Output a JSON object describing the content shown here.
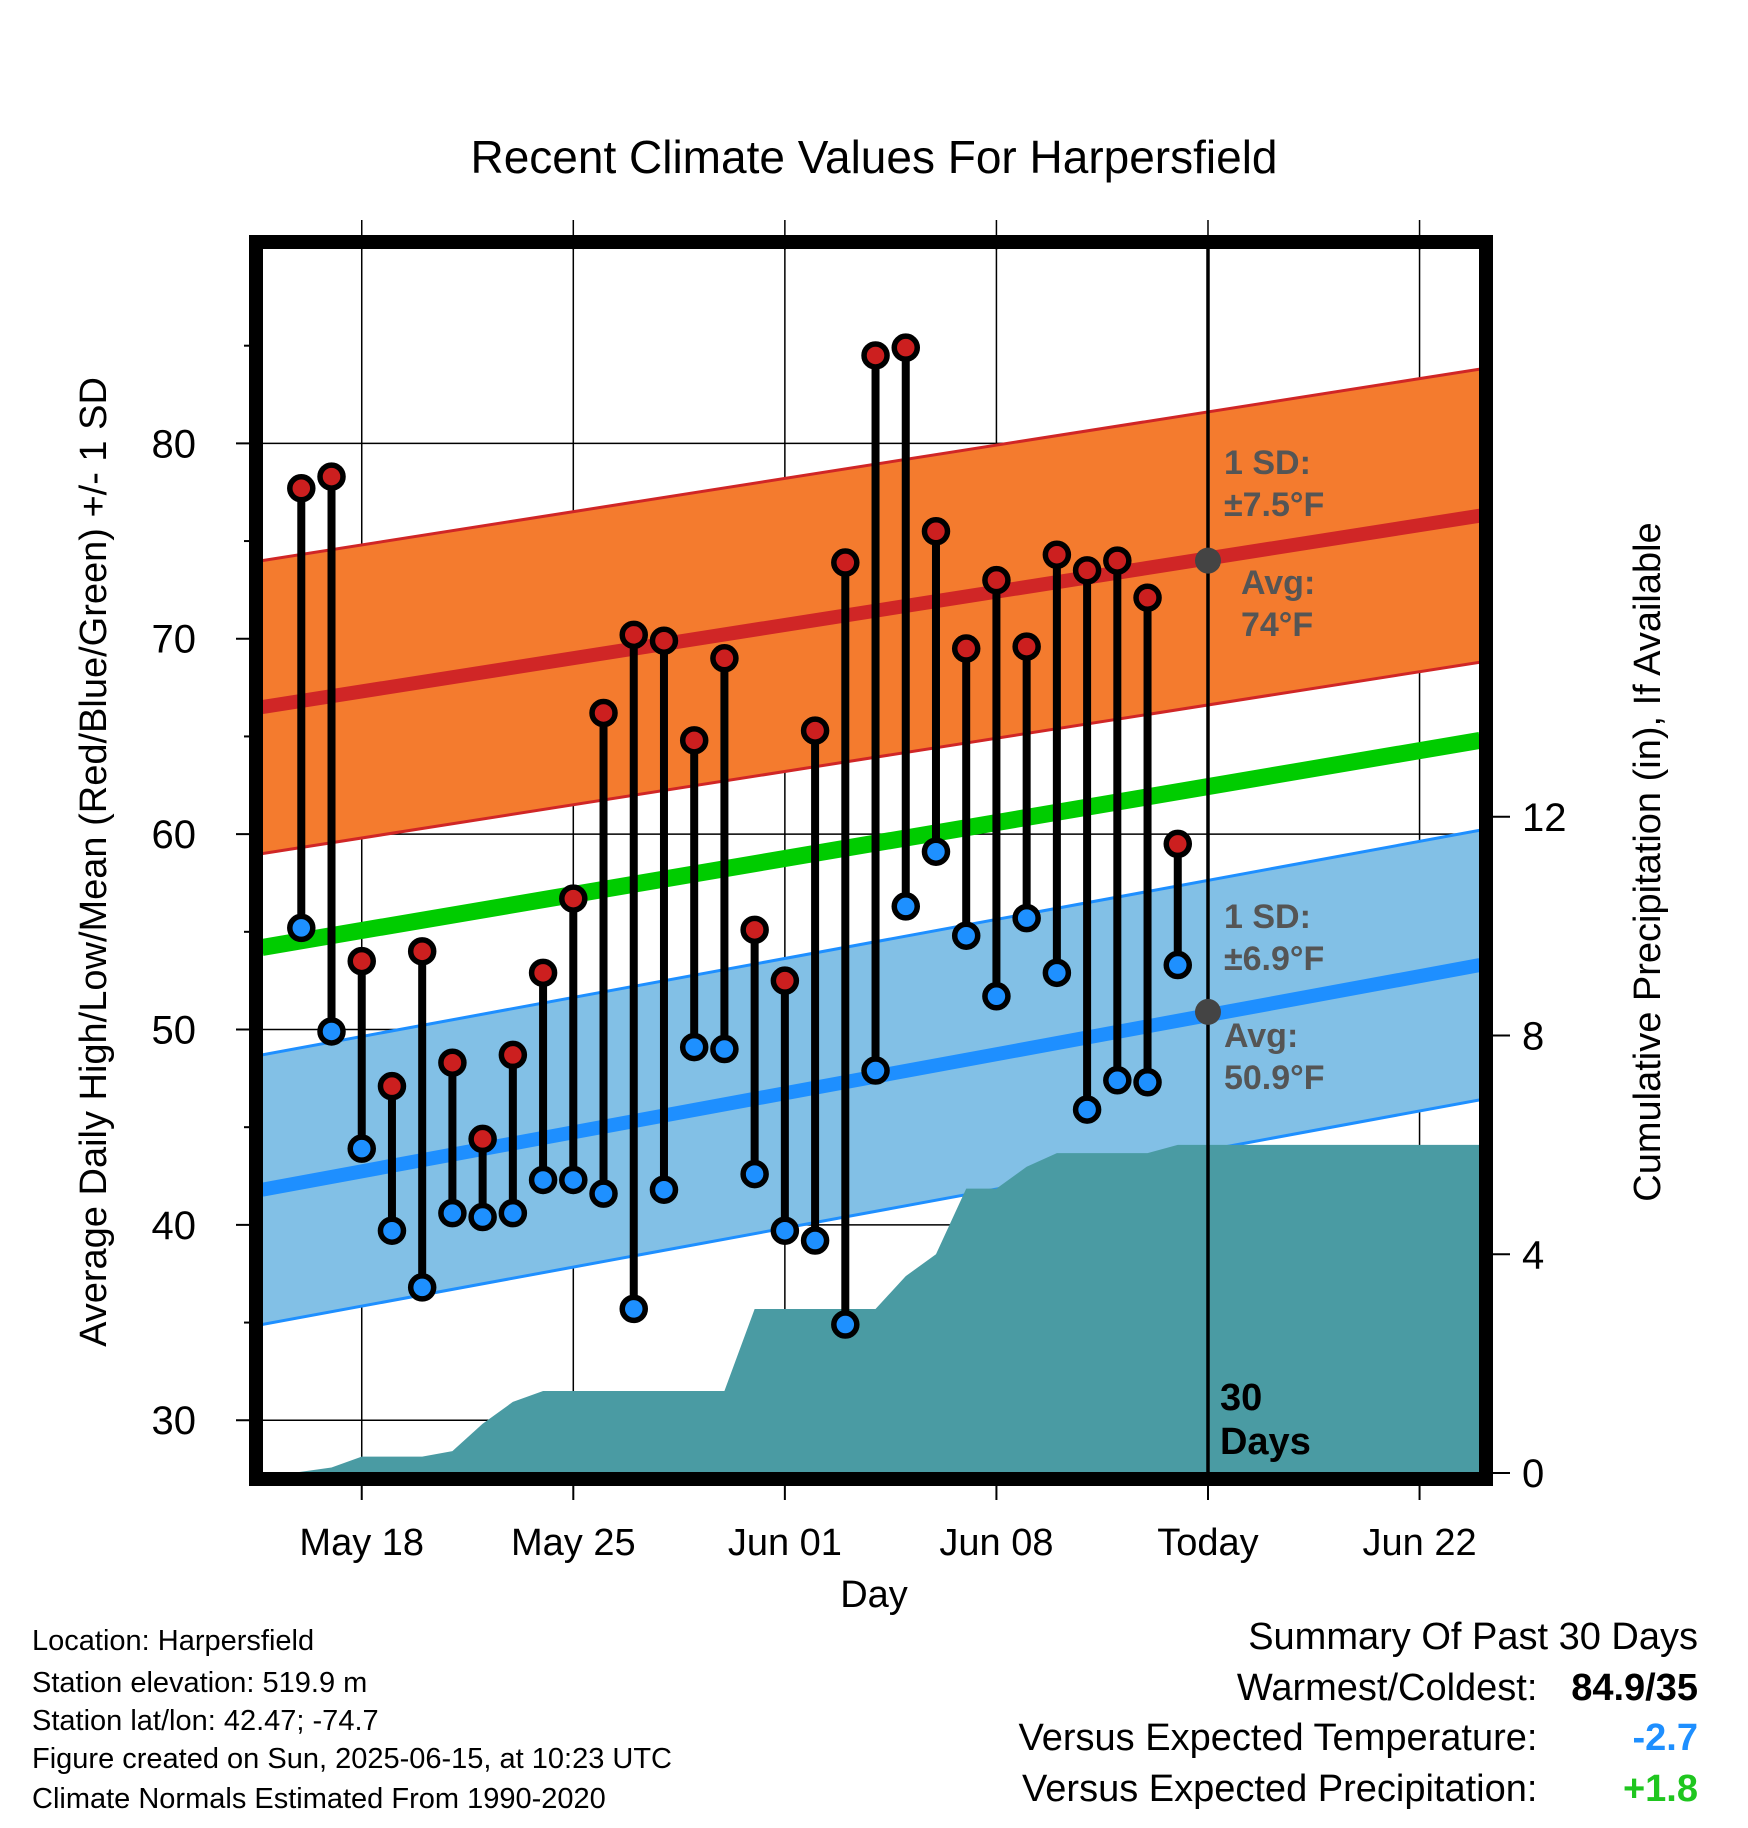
{
  "title": "Recent Climate Values For Harpersfield",
  "chart_data": {
    "type": "line",
    "title": "Recent Climate Values For Harpersfield",
    "xlabel": "Day",
    "ylabel_left": "Average Daily High/Low/Mean (Red/Blue/Green) +/- 1 SD",
    "ylabel_right": "Cumulative Precipitation (in), If Available",
    "x_ticks": [
      {
        "day": 18,
        "label": "May 18"
      },
      {
        "day": 25,
        "label": "May 25"
      },
      {
        "day": 32,
        "label": "Jun 01"
      },
      {
        "day": 39,
        "label": "Jun 08"
      },
      {
        "day": 46,
        "label": "Today"
      },
      {
        "day": 53,
        "label": "Jun 22"
      }
    ],
    "x_axis_note": "day of May (32 = Jun 01)",
    "xlim": [
      14.7,
      55.0
    ],
    "ylim_left": [
      27.3,
      90.0
    ],
    "y_ticks_left": [
      30,
      40,
      50,
      60,
      70,
      80
    ],
    "ylim_right": [
      0,
      22.4
    ],
    "y_ticks_right": [
      0,
      4,
      8,
      12
    ],
    "grid": true,
    "today_day": 46,
    "today_label": "30\nDays",
    "normal_high": {
      "start": 66.5,
      "end": 76.3,
      "sd": 7.5,
      "today_avg": 74
    },
    "normal_low": {
      "start": 41.8,
      "end": 53.3,
      "sd": 6.9,
      "today_avg": 50.9
    },
    "normal_mean": {
      "start": 54.2,
      "end": 64.8
    },
    "annotations": {
      "high_sd": [
        "1 SD:",
        "±7.5°F"
      ],
      "high_avg": [
        "Avg:",
        "74°F"
      ],
      "low_sd": [
        "1 SD:",
        "±6.9°F"
      ],
      "low_avg": [
        "Avg:",
        "50.9°F"
      ]
    },
    "observed": [
      {
        "date": "May 16",
        "high": 77.7,
        "low": 55.2
      },
      {
        "date": "May 17",
        "high": 78.3,
        "low": 49.9
      },
      {
        "date": "May 18",
        "high": 53.5,
        "low": 43.9
      },
      {
        "date": "May 19",
        "high": 47.1,
        "low": 39.7
      },
      {
        "date": "May 20",
        "high": 54.0,
        "low": 36.8
      },
      {
        "date": "May 21",
        "high": 48.3,
        "low": 40.6
      },
      {
        "date": "May 22",
        "high": 44.4,
        "low": 40.4
      },
      {
        "date": "May 23",
        "high": 48.7,
        "low": 40.6
      },
      {
        "date": "May 24",
        "high": 52.9,
        "low": 42.3
      },
      {
        "date": "May 25",
        "high": 56.7,
        "low": 42.3
      },
      {
        "date": "May 26",
        "high": 66.2,
        "low": 41.6
      },
      {
        "date": "May 27",
        "high": 70.2,
        "low": 35.7
      },
      {
        "date": "May 28",
        "high": 69.9,
        "low": 41.8
      },
      {
        "date": "May 29",
        "high": 64.8,
        "low": 49.1
      },
      {
        "date": "May 30",
        "high": 69.0,
        "low": 49.0
      },
      {
        "date": "May 31",
        "high": 55.1,
        "low": 42.6
      },
      {
        "date": "Jun 01",
        "high": 52.5,
        "low": 39.7
      },
      {
        "date": "Jun 02",
        "high": 65.3,
        "low": 39.2
      },
      {
        "date": "Jun 03",
        "high": 73.9,
        "low": 34.9
      },
      {
        "date": "Jun 04",
        "high": 84.5,
        "low": 47.9
      },
      {
        "date": "Jun 05",
        "high": 84.9,
        "low": 56.3
      },
      {
        "date": "Jun 06",
        "high": 75.5,
        "low": 59.1
      },
      {
        "date": "Jun 07",
        "high": 69.5,
        "low": 54.8
      },
      {
        "date": "Jun 08",
        "high": 73.0,
        "low": 51.7
      },
      {
        "date": "Jun 09",
        "high": 69.6,
        "low": 55.7
      },
      {
        "date": "Jun 10",
        "high": 74.3,
        "low": 52.9
      },
      {
        "date": "Jun 11",
        "high": 73.5,
        "low": 45.9
      },
      {
        "date": "Jun 12",
        "high": 74.0,
        "low": 47.4
      },
      {
        "date": "Jun 13",
        "high": 72.1,
        "low": 47.3
      },
      {
        "date": "Jun 14",
        "high": 59.5,
        "low": 53.3
      }
    ],
    "cumulative_precip": {
      "day": [
        15.7,
        17.0,
        18.0,
        19.0,
        20.0,
        21.0,
        22.0,
        23.0,
        24.0,
        25.0,
        26.0,
        27.0,
        28.0,
        29.0,
        30.0,
        31.0,
        32.0,
        33.0,
        34.0,
        35.0,
        36.0,
        37.0,
        38.0,
        39.0,
        40.0,
        41.0,
        42.0,
        43.0,
        44.0,
        45.0,
        46.0,
        55.0
      ],
      "value": [
        0.0,
        0.1,
        0.3,
        0.3,
        0.3,
        0.4,
        0.9,
        1.3,
        1.5,
        1.5,
        1.5,
        1.5,
        1.5,
        1.5,
        1.5,
        3.0,
        3.0,
        3.0,
        3.0,
        3.0,
        3.6,
        4.0,
        5.2,
        5.2,
        5.6,
        5.85,
        5.85,
        5.85,
        5.85,
        6.0,
        6.0,
        6.0
      ]
    },
    "colors": {
      "high_band": "#F47B2E",
      "high_line": "#D02626",
      "high_edge": "#D02626",
      "low_band": "#82C0E6",
      "low_line": "#1E8FFF",
      "low_edge": "#1E8FFF",
      "mean_line": "#00CC00",
      "precip": "#4A9BA3",
      "high_dot": "#CC1F1F",
      "low_dot": "#1E90FF",
      "avg_marker": "#444444",
      "annotation_text": "#555555"
    }
  },
  "info": {
    "location": "Location: Harpersfield",
    "elevation": "Station elevation: 519.9 m",
    "latlon": "Station lat/lon: 42.47; -74.7",
    "created": "Figure created on Sun, 2025-06-15, at 10:23 UTC",
    "normals": "Climate Normals Estimated From 1990-2020"
  },
  "summary": {
    "heading": "Summary Of Past 30 Days",
    "warm_cold_label": "Warmest/Coldest:",
    "warm_cold_value": "84.9/35",
    "temp_label": "Versus Expected Temperature:",
    "temp_value": "-2.7",
    "temp_color": "#1E8FFF",
    "precip_label": "Versus Expected Precipitation:",
    "precip_value": "+1.8",
    "precip_color": "#1FC61F"
  }
}
